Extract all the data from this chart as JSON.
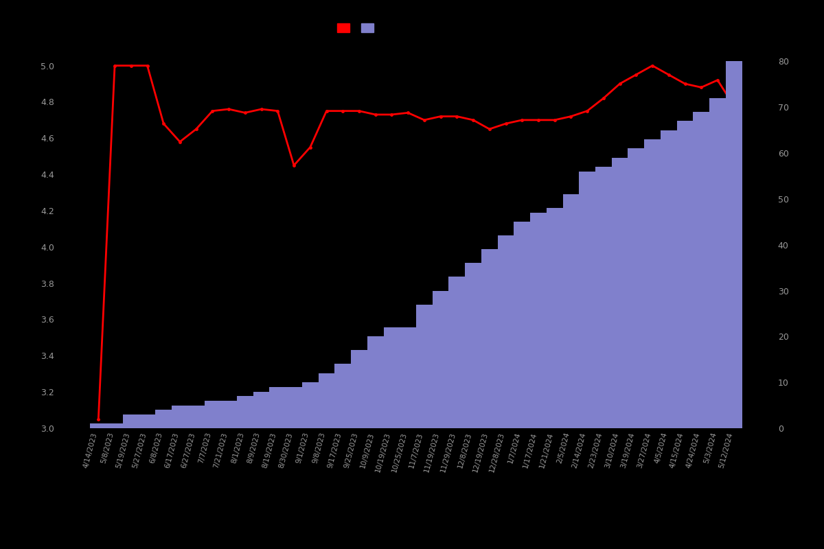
{
  "dates": [
    "4/14/2023",
    "5/8/2023",
    "5/19/2023",
    "5/27/2023",
    "6/8/2023",
    "6/17/2023",
    "6/27/2023",
    "7/7/2023",
    "7/21/2023",
    "8/1/2023",
    "8/9/2023",
    "8/19/2023",
    "8/30/2023",
    "9/1/2023",
    "9/8/2023",
    "9/17/2023",
    "9/25/2023",
    "10/9/2023",
    "10/19/2023",
    "10/25/2023",
    "11/7/2023",
    "11/19/2023",
    "11/29/2023",
    "12/8/2023",
    "12/19/2023",
    "12/28/2023",
    "1/7/2024",
    "1/17/2024",
    "1/21/2024",
    "2/5/2024",
    "2/14/2024",
    "2/23/2024",
    "3/10/2024",
    "3/19/2024",
    "3/27/2024",
    "4/5/2024",
    "4/15/2024",
    "4/24/2024",
    "5/3/2024",
    "5/12/2024"
  ],
  "ratings": [
    3.05,
    5.0,
    5.0,
    5.0,
    4.68,
    4.58,
    4.65,
    4.75,
    4.76,
    4.74,
    4.76,
    4.75,
    4.45,
    4.55,
    4.75,
    4.75,
    4.75,
    4.73,
    4.73,
    4.74,
    4.7,
    4.72,
    4.72,
    4.7,
    4.65,
    4.68,
    4.7,
    4.7,
    4.7,
    4.72,
    4.75,
    4.82,
    4.9,
    4.95,
    5.0,
    4.95,
    4.9,
    4.88,
    4.92,
    4.78
  ],
  "counts": [
    1,
    1,
    3,
    3,
    4,
    5,
    5,
    6,
    6,
    7,
    8,
    9,
    9,
    10,
    12,
    14,
    17,
    20,
    22,
    22,
    27,
    30,
    33,
    36,
    39,
    42,
    45,
    47,
    48,
    51,
    56,
    57,
    59,
    61,
    63,
    65,
    67,
    69,
    72,
    80
  ],
  "bar_color": "#8080CC",
  "line_color": "#FF0000",
  "background_color": "#000000",
  "text_color": "#999999",
  "left_ylim": [
    3.0,
    5.15
  ],
  "right_ylim": [
    0,
    85
  ],
  "left_yticks": [
    3.0,
    3.2,
    3.4,
    3.6,
    3.8,
    4.0,
    4.2,
    4.4,
    4.6,
    4.8,
    5.0
  ],
  "right_yticks": [
    0,
    10,
    20,
    30,
    40,
    50,
    60,
    70,
    80
  ],
  "legend_patch_red": "#FF0000",
  "legend_patch_blue": "#8080CC"
}
